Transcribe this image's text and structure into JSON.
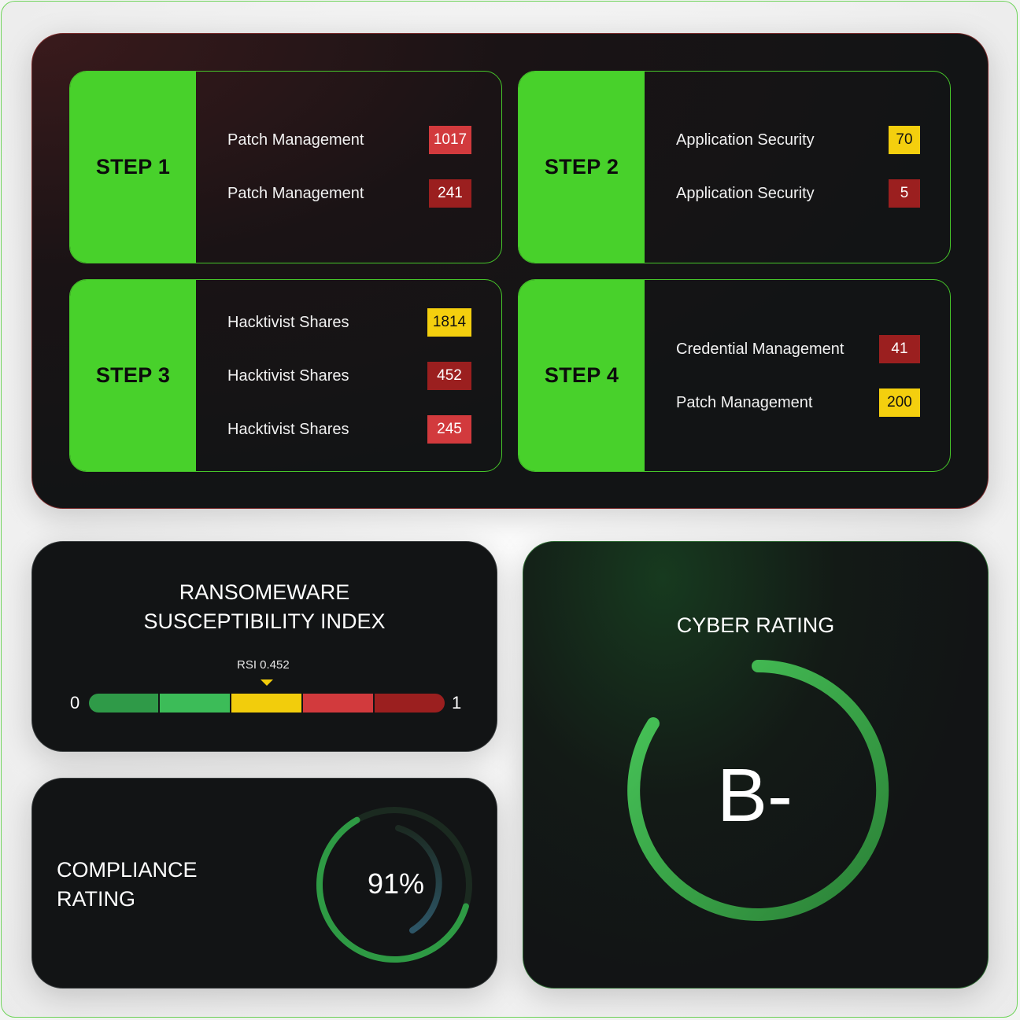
{
  "steps": [
    {
      "label": "STEP 1",
      "rows": [
        {
          "label": "Patch Management",
          "value": "1017",
          "severity": "red"
        },
        {
          "label": "Patch Management",
          "value": "241",
          "severity": "darkred"
        }
      ]
    },
    {
      "label": "STEP 2",
      "rows": [
        {
          "label": "Application Security",
          "value": "70",
          "severity": "yellow"
        },
        {
          "label": "Application Security",
          "value": "5",
          "severity": "darkred"
        }
      ]
    },
    {
      "label": "STEP 3",
      "rows": [
        {
          "label": "Hacktivist Shares",
          "value": "1814",
          "severity": "yellow"
        },
        {
          "label": "Hacktivist Shares",
          "value": "452",
          "severity": "darkred"
        },
        {
          "label": "Hacktivist Shares",
          "value": "245",
          "severity": "red"
        }
      ]
    },
    {
      "label": "STEP 4",
      "rows": [
        {
          "label": "Credential Management",
          "value": "41",
          "severity": "darkred"
        },
        {
          "label": "Patch Management",
          "value": "200",
          "severity": "yellow"
        }
      ]
    }
  ],
  "rsi": {
    "title_line1": "RANSOMEWARE",
    "title_line2": "SUSCEPTIBILITY INDEX",
    "marker_label": "RSI 0.452",
    "value": 0.452,
    "min_label": "0",
    "max_label": "1",
    "segment_colors": [
      "#2f9a48",
      "#3cbc58",
      "#f2cd0c",
      "#d23a3d",
      "#9b1f1f"
    ]
  },
  "compliance": {
    "title_line1": "COMPLIANCE",
    "title_line2": "RATING",
    "value_label": "91%",
    "value": 0.91
  },
  "cyber": {
    "title": "CYBER RATING",
    "grade": "B-"
  },
  "colors": {
    "accent_green": "#48d12b",
    "panel_bg": "#121415",
    "badge_red": "#d23a3d",
    "badge_darkred": "#9b1f1f",
    "badge_yellow": "#f4cf0e"
  }
}
